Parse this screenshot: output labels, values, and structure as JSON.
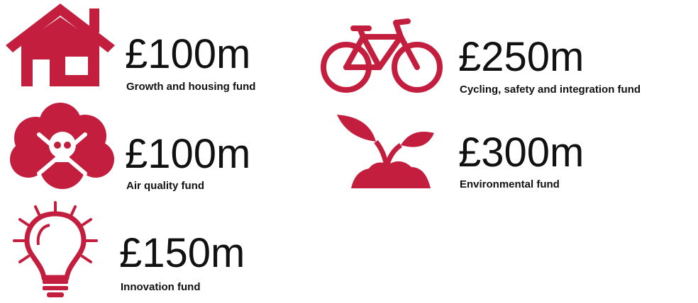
{
  "items": [
    {
      "amount": "£100m",
      "label": "Growth and housing fund"
    },
    {
      "amount": "£250m",
      "label": "Cycling, safety and integration fund"
    },
    {
      "amount": "£100m",
      "label": "Air quality fund"
    },
    {
      "amount": "£300m",
      "label": "Environmental fund"
    },
    {
      "amount": "£150m",
      "label": "Innovation fund"
    }
  ]
}
